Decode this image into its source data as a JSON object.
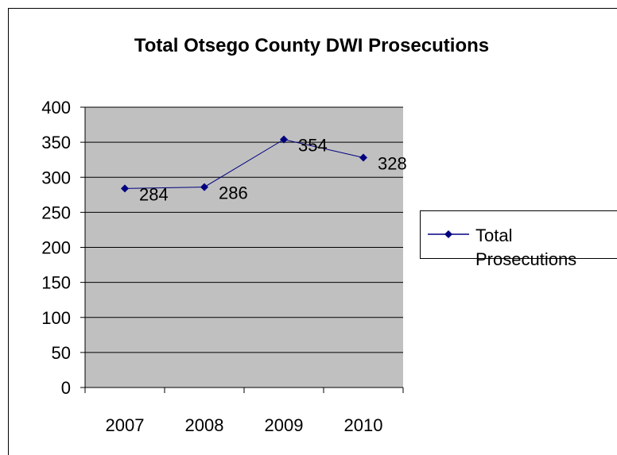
{
  "chart_data": {
    "type": "line",
    "title": "Total Otsego County DWI Prosecutions",
    "categories": [
      "2007",
      "2008",
      "2009",
      "2010"
    ],
    "series": [
      {
        "name": "Total Prosecutions",
        "color": "#000080",
        "values": [
          284,
          286,
          354,
          328
        ]
      }
    ],
    "ylim": [
      0,
      400
    ],
    "yticks": [
      0,
      50,
      100,
      150,
      200,
      250,
      300,
      350,
      400
    ],
    "grid": true,
    "legend": "right",
    "plot_background": "#c0c0c0"
  }
}
